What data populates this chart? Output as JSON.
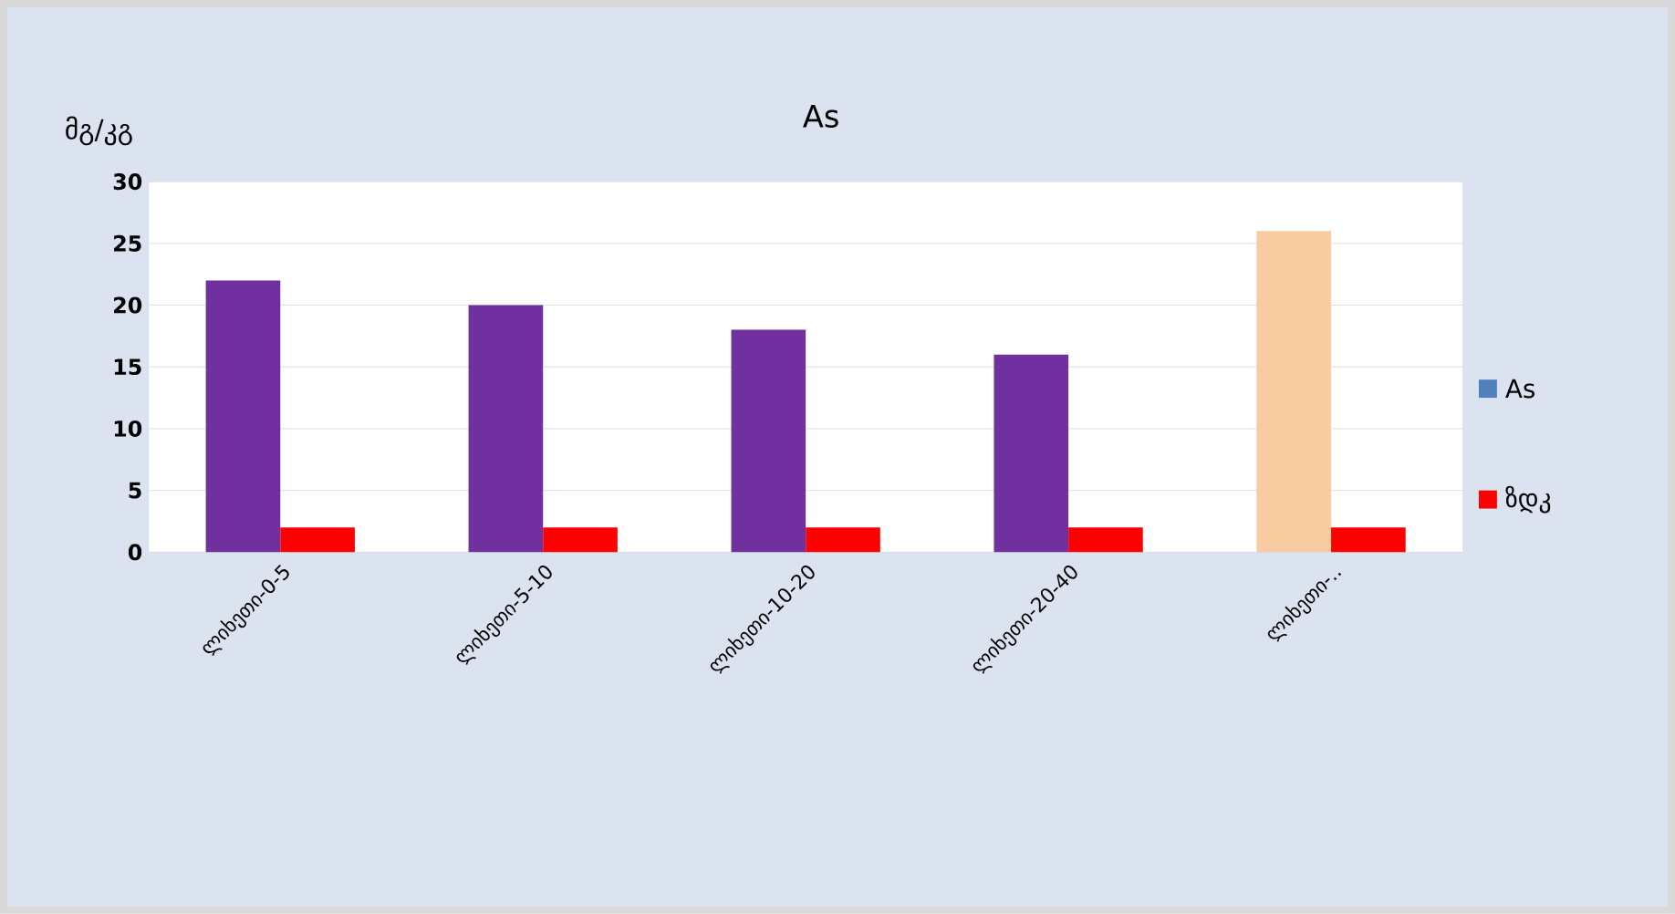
{
  "chart_data": {
    "type": "bar",
    "title": "As",
    "annotations": [
      "მგ/კგ"
    ],
    "categories": [
      "ლიხეთი-0-5",
      "ლიხეთი-5-10",
      "ლიხეთი-10-20",
      "ლიხეთი-20-40",
      "ლიხეთი-.."
    ],
    "series": [
      {
        "name": "As",
        "color": "#4f81bd",
        "colors": [
          "#7030a0",
          "#7030a0",
          "#7030a0",
          "#7030a0",
          "#f8cba0"
        ],
        "values": [
          22,
          20,
          18,
          16,
          26
        ]
      },
      {
        "name": "ზდკ",
        "color": "#ff0000",
        "values": [
          2,
          2,
          2,
          2,
          2
        ]
      }
    ],
    "ylim": [
      0,
      30
    ],
    "yticks": [
      0,
      5,
      10,
      15,
      20,
      25,
      30
    ],
    "grid": "y",
    "legend": "right"
  }
}
